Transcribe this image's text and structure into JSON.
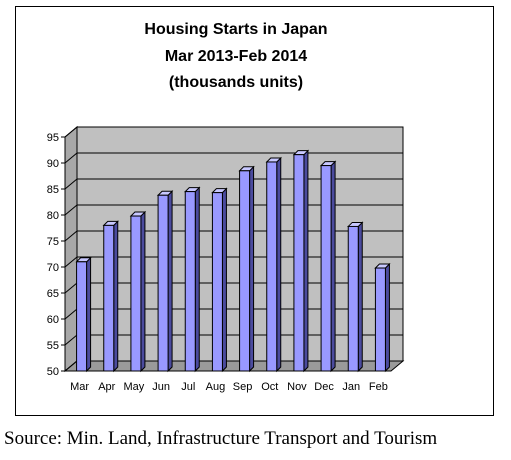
{
  "chart_data": {
    "type": "bar",
    "title": [
      "Housing Starts in Japan",
      "Mar 2013-Feb 2014",
      "(thousands units)"
    ],
    "categories": [
      "Mar",
      "Apr",
      "May",
      "Jun",
      "Jul",
      "Aug",
      "Sep",
      "Oct",
      "Nov",
      "Dec",
      "Jan",
      "Feb"
    ],
    "values": [
      71,
      78,
      79.8,
      83.8,
      84.5,
      84.3,
      88.5,
      90.2,
      91.6,
      89.5,
      77.8,
      69.8
    ],
    "xlabel": "",
    "ylabel": "",
    "ylim": [
      50,
      95
    ],
    "yticks": [
      50,
      55,
      60,
      65,
      70,
      75,
      80,
      85,
      90,
      95
    ],
    "grid": true,
    "legend": "none",
    "style": "3d-bar",
    "colors": {
      "bar_front": "#9999ff",
      "bar_side": "#4b4b9e",
      "bar_top": "#c8c8ff",
      "wall": "#c0c0c0",
      "floor": "#9a9a9a"
    }
  },
  "source": "Source: Min. Land, Infrastructure Transport and Tourism"
}
